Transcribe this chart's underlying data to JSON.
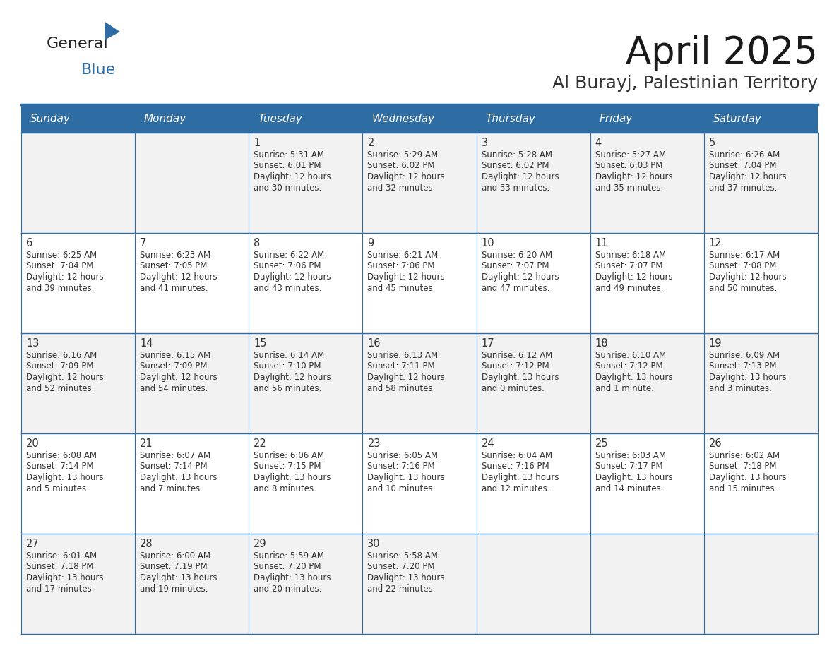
{
  "title": "April 2025",
  "subtitle": "Al Burayj, Palestinian Territory",
  "header_bg_color": "#2E6DA4",
  "header_text_color": "#FFFFFF",
  "day_names": [
    "Sunday",
    "Monday",
    "Tuesday",
    "Wednesday",
    "Thursday",
    "Friday",
    "Saturday"
  ],
  "title_color": "#1a1a1a",
  "subtitle_color": "#333333",
  "line_color": "#2E6DA4",
  "text_color": "#333333",
  "row0_bg": "#F2F2F2",
  "row1_bg": "#FFFFFF",
  "days": [
    {
      "day": 1,
      "col": 2,
      "row": 0,
      "sunrise": "5:31 AM",
      "sunset": "6:01 PM",
      "daylight_h": "12 hours",
      "daylight_m": "and 30 minutes."
    },
    {
      "day": 2,
      "col": 3,
      "row": 0,
      "sunrise": "5:29 AM",
      "sunset": "6:02 PM",
      "daylight_h": "12 hours",
      "daylight_m": "and 32 minutes."
    },
    {
      "day": 3,
      "col": 4,
      "row": 0,
      "sunrise": "5:28 AM",
      "sunset": "6:02 PM",
      "daylight_h": "12 hours",
      "daylight_m": "and 33 minutes."
    },
    {
      "day": 4,
      "col": 5,
      "row": 0,
      "sunrise": "5:27 AM",
      "sunset": "6:03 PM",
      "daylight_h": "12 hours",
      "daylight_m": "and 35 minutes."
    },
    {
      "day": 5,
      "col": 6,
      "row": 0,
      "sunrise": "6:26 AM",
      "sunset": "7:04 PM",
      "daylight_h": "12 hours",
      "daylight_m": "and 37 minutes."
    },
    {
      "day": 6,
      "col": 0,
      "row": 1,
      "sunrise": "6:25 AM",
      "sunset": "7:04 PM",
      "daylight_h": "12 hours",
      "daylight_m": "and 39 minutes."
    },
    {
      "day": 7,
      "col": 1,
      "row": 1,
      "sunrise": "6:23 AM",
      "sunset": "7:05 PM",
      "daylight_h": "12 hours",
      "daylight_m": "and 41 minutes."
    },
    {
      "day": 8,
      "col": 2,
      "row": 1,
      "sunrise": "6:22 AM",
      "sunset": "7:06 PM",
      "daylight_h": "12 hours",
      "daylight_m": "and 43 minutes."
    },
    {
      "day": 9,
      "col": 3,
      "row": 1,
      "sunrise": "6:21 AM",
      "sunset": "7:06 PM",
      "daylight_h": "12 hours",
      "daylight_m": "and 45 minutes."
    },
    {
      "day": 10,
      "col": 4,
      "row": 1,
      "sunrise": "6:20 AM",
      "sunset": "7:07 PM",
      "daylight_h": "12 hours",
      "daylight_m": "and 47 minutes."
    },
    {
      "day": 11,
      "col": 5,
      "row": 1,
      "sunrise": "6:18 AM",
      "sunset": "7:07 PM",
      "daylight_h": "12 hours",
      "daylight_m": "and 49 minutes."
    },
    {
      "day": 12,
      "col": 6,
      "row": 1,
      "sunrise": "6:17 AM",
      "sunset": "7:08 PM",
      "daylight_h": "12 hours",
      "daylight_m": "and 50 minutes."
    },
    {
      "day": 13,
      "col": 0,
      "row": 2,
      "sunrise": "6:16 AM",
      "sunset": "7:09 PM",
      "daylight_h": "12 hours",
      "daylight_m": "and 52 minutes."
    },
    {
      "day": 14,
      "col": 1,
      "row": 2,
      "sunrise": "6:15 AM",
      "sunset": "7:09 PM",
      "daylight_h": "12 hours",
      "daylight_m": "and 54 minutes."
    },
    {
      "day": 15,
      "col": 2,
      "row": 2,
      "sunrise": "6:14 AM",
      "sunset": "7:10 PM",
      "daylight_h": "12 hours",
      "daylight_m": "and 56 minutes."
    },
    {
      "day": 16,
      "col": 3,
      "row": 2,
      "sunrise": "6:13 AM",
      "sunset": "7:11 PM",
      "daylight_h": "12 hours",
      "daylight_m": "and 58 minutes."
    },
    {
      "day": 17,
      "col": 4,
      "row": 2,
      "sunrise": "6:12 AM",
      "sunset": "7:12 PM",
      "daylight_h": "13 hours",
      "daylight_m": "and 0 minutes."
    },
    {
      "day": 18,
      "col": 5,
      "row": 2,
      "sunrise": "6:10 AM",
      "sunset": "7:12 PM",
      "daylight_h": "13 hours",
      "daylight_m": "and 1 minute."
    },
    {
      "day": 19,
      "col": 6,
      "row": 2,
      "sunrise": "6:09 AM",
      "sunset": "7:13 PM",
      "daylight_h": "13 hours",
      "daylight_m": "and 3 minutes."
    },
    {
      "day": 20,
      "col": 0,
      "row": 3,
      "sunrise": "6:08 AM",
      "sunset": "7:14 PM",
      "daylight_h": "13 hours",
      "daylight_m": "and 5 minutes."
    },
    {
      "day": 21,
      "col": 1,
      "row": 3,
      "sunrise": "6:07 AM",
      "sunset": "7:14 PM",
      "daylight_h": "13 hours",
      "daylight_m": "and 7 minutes."
    },
    {
      "day": 22,
      "col": 2,
      "row": 3,
      "sunrise": "6:06 AM",
      "sunset": "7:15 PM",
      "daylight_h": "13 hours",
      "daylight_m": "and 8 minutes."
    },
    {
      "day": 23,
      "col": 3,
      "row": 3,
      "sunrise": "6:05 AM",
      "sunset": "7:16 PM",
      "daylight_h": "13 hours",
      "daylight_m": "and 10 minutes."
    },
    {
      "day": 24,
      "col": 4,
      "row": 3,
      "sunrise": "6:04 AM",
      "sunset": "7:16 PM",
      "daylight_h": "13 hours",
      "daylight_m": "and 12 minutes."
    },
    {
      "day": 25,
      "col": 5,
      "row": 3,
      "sunrise": "6:03 AM",
      "sunset": "7:17 PM",
      "daylight_h": "13 hours",
      "daylight_m": "and 14 minutes."
    },
    {
      "day": 26,
      "col": 6,
      "row": 3,
      "sunrise": "6:02 AM",
      "sunset": "7:18 PM",
      "daylight_h": "13 hours",
      "daylight_m": "and 15 minutes."
    },
    {
      "day": 27,
      "col": 0,
      "row": 4,
      "sunrise": "6:01 AM",
      "sunset": "7:18 PM",
      "daylight_h": "13 hours",
      "daylight_m": "and 17 minutes."
    },
    {
      "day": 28,
      "col": 1,
      "row": 4,
      "sunrise": "6:00 AM",
      "sunset": "7:19 PM",
      "daylight_h": "13 hours",
      "daylight_m": "and 19 minutes."
    },
    {
      "day": 29,
      "col": 2,
      "row": 4,
      "sunrise": "5:59 AM",
      "sunset": "7:20 PM",
      "daylight_h": "13 hours",
      "daylight_m": "and 20 minutes."
    },
    {
      "day": 30,
      "col": 3,
      "row": 4,
      "sunrise": "5:58 AM",
      "sunset": "7:20 PM",
      "daylight_h": "13 hours",
      "daylight_m": "and 22 minutes."
    }
  ]
}
